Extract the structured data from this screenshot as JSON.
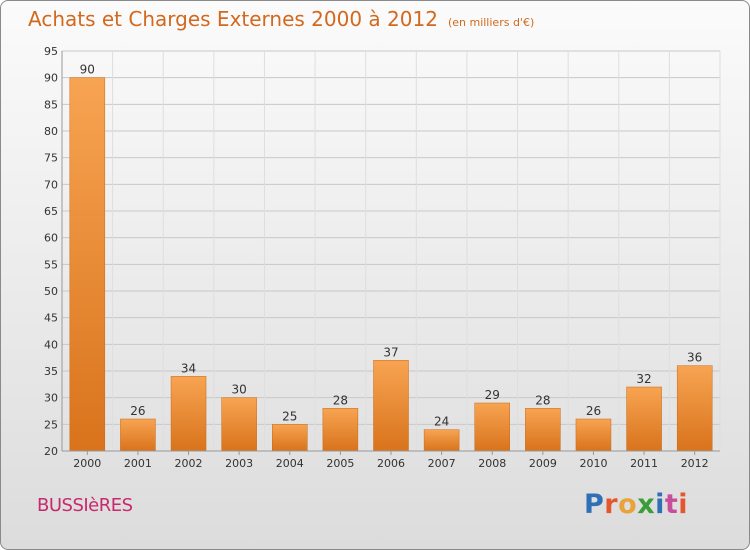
{
  "title": "Achats et Charges Externes 2000 à 2012",
  "subtitle": "(en milliers d'€)",
  "commune": "BUSSIèRES",
  "logo": {
    "text": "Proxiti",
    "colors": [
      "#2f6fb6",
      "#e4572e",
      "#e8a33d",
      "#3a9d3a",
      "#2f6fb6",
      "#c84d9c",
      "#e4572e"
    ]
  },
  "chart_data": {
    "type": "bar",
    "categories": [
      "2000",
      "2001",
      "2002",
      "2003",
      "2004",
      "2005",
      "2006",
      "2007",
      "2008",
      "2009",
      "2010",
      "2011",
      "2012"
    ],
    "values": [
      90,
      26,
      34,
      30,
      25,
      28,
      37,
      24,
      29,
      28,
      26,
      32,
      36
    ],
    "ylim": [
      20,
      95
    ],
    "yticks": [
      20,
      25,
      30,
      35,
      40,
      45,
      50,
      55,
      60,
      65,
      70,
      75,
      80,
      85,
      90,
      95
    ],
    "grid": true,
    "bar_color": "#f0922e"
  }
}
